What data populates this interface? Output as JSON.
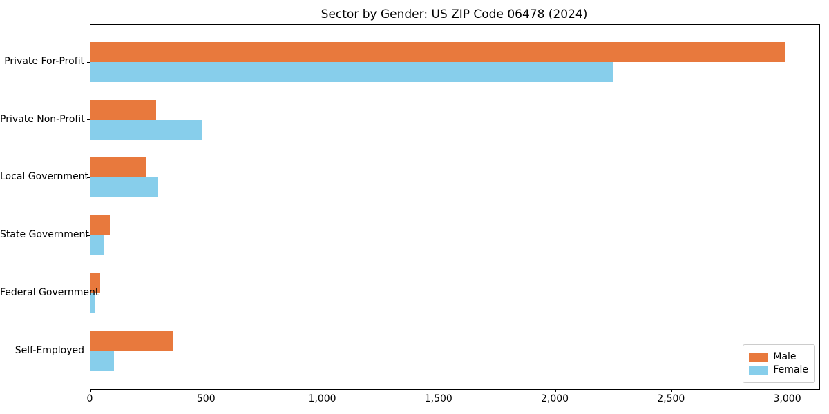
{
  "title": "Sector by Gender: US ZIP Code 06478 (2024)",
  "colors": {
    "male": "#e8793d",
    "female": "#87ceeb",
    "spine": "#000000",
    "legend_border": "#cccccc",
    "background": "#ffffff",
    "text": "#000000"
  },
  "legend": {
    "position": "lower right",
    "entries": [
      {
        "label": "Male",
        "color": "#e8793d"
      },
      {
        "label": "Female",
        "color": "#87ceeb"
      }
    ]
  },
  "chart_data": {
    "type": "bar",
    "orientation": "horizontal",
    "title": "Sector by Gender: US ZIP Code 06478 (2024)",
    "xlabel": "",
    "ylabel": "",
    "grid": false,
    "categories": [
      "Private For-Profit",
      "Private Non-Profit",
      "Local Government",
      "State Government",
      "Federal Government",
      "Self-Employed"
    ],
    "series": [
      {
        "name": "Male",
        "color": "#e8793d",
        "values": [
          2990,
          282,
          238,
          84,
          41,
          356
        ]
      },
      {
        "name": "Female",
        "color": "#87ceeb",
        "values": [
          2250,
          480,
          289,
          58,
          17,
          100
        ]
      }
    ],
    "xlim": [
      0,
      3135
    ],
    "xticks": [
      0,
      500,
      1000,
      1500,
      2000,
      2500,
      3000
    ],
    "xtick_labels": [
      "0",
      "500",
      "1,000",
      "1,500",
      "2,000",
      "2,500",
      "3,000"
    ],
    "legend_position": "lower right"
  }
}
